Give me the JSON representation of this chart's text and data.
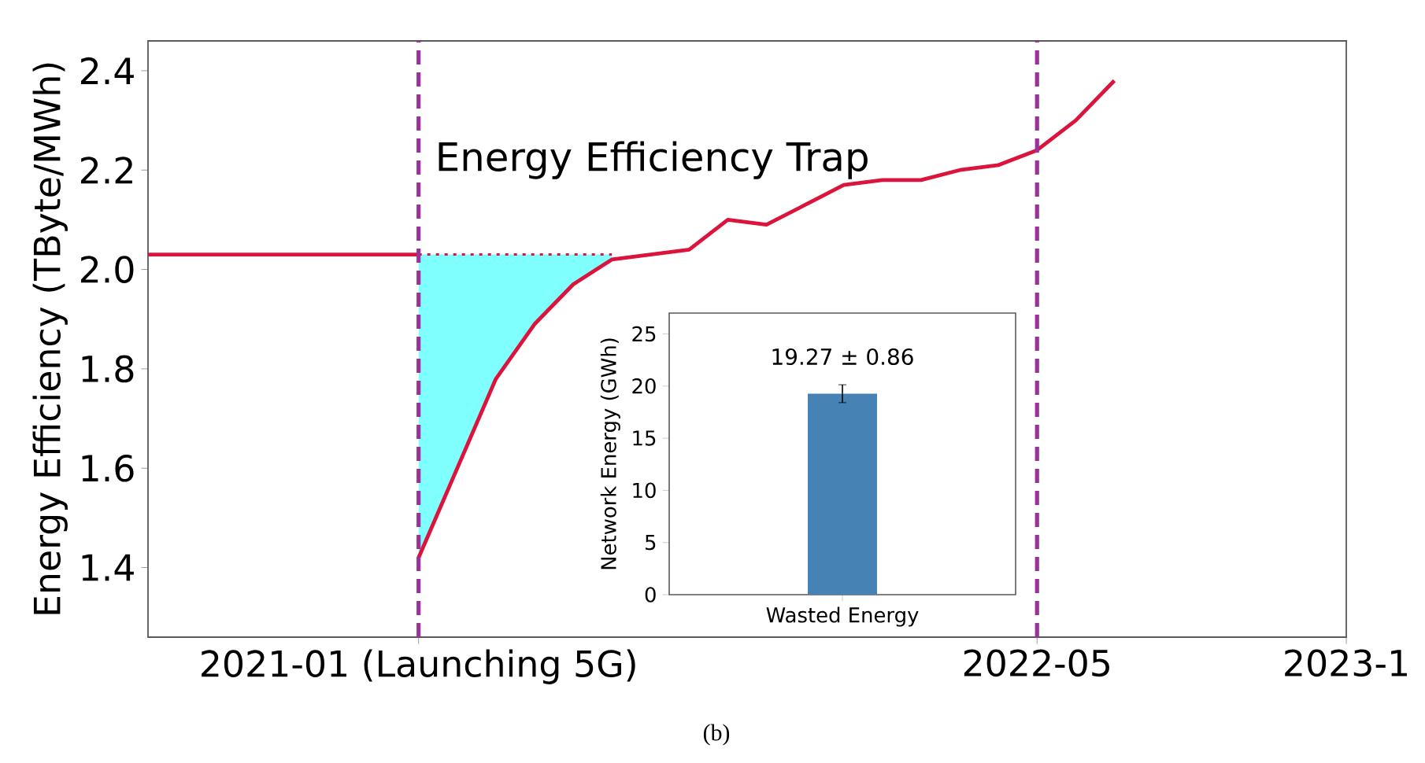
{
  "chart_data": [
    {
      "type": "line",
      "ylabel": "Energy Efficiency (TByte/MWh)",
      "xlim": [
        "2020-06",
        "2023-01"
      ],
      "ylim": [
        1.26,
        2.46
      ],
      "xticks": [
        {
          "value": "2021-01",
          "label": "2021-01 (Launching 5G)"
        },
        {
          "value": "2022-05",
          "label": "2022-05"
        },
        {
          "value": "2023-01",
          "label": "2023-1"
        }
      ],
      "yticks": [
        1.4,
        1.6,
        1.8,
        {
          "value": 2.0,
          "label": "2.0"
        },
        2.2,
        2.4
      ],
      "series": [
        {
          "type": "area",
          "color": "#80ffff",
          "x": [
            "2021-01",
            "2021-03",
            "2021-04",
            "2021-05",
            "2021-06"
          ],
          "values": [
            2.03,
            2.03,
            2.03,
            2.03,
            2.03
          ]
        },
        {
          "type": "line",
          "color": "#dc143c",
          "line_style": "dotted",
          "x": [
            "2021-01",
            "2021-06"
          ],
          "values": [
            2.03,
            2.03
          ]
        },
        {
          "type": "line",
          "color": "#dc143c",
          "x": [
            "2020-06",
            "2021-01"
          ],
          "values": [
            2.03,
            2.03
          ]
        },
        {
          "type": "line",
          "color": "#dc143c",
          "x": [
            "2021-01",
            "2021-03",
            "2021-04",
            "2021-05",
            "2021-06",
            "2021-07",
            "2021-08",
            "2021-09",
            "2021-10",
            "2021-11",
            "2021-12",
            "2022-01",
            "2022-02",
            "2022-03",
            "2022-04",
            "2022-05",
            "2022-06",
            "2022-07"
          ],
          "values": [
            1.42,
            1.78,
            1.89,
            1.97,
            2.02,
            2.03,
            2.04,
            2.1,
            2.09,
            2.13,
            2.17,
            2.18,
            2.18,
            2.2,
            2.21,
            2.24,
            2.3,
            2.38
          ]
        }
      ],
      "ref_lines": [
        {
          "axis": "x",
          "value": "2021-01",
          "color": "#993399",
          "line_style": "dashed"
        },
        {
          "axis": "x",
          "value": "2022-05",
          "color": "#993399",
          "line_style": "dashed"
        }
      ],
      "annotations": [
        "Energy Efficiency Trap",
        "(b)"
      ]
    },
    {
      "type": "bar",
      "ylabel": "Network Energy (GWh)",
      "categories": [
        "Wasted Energy"
      ],
      "values": [
        19.27
      ],
      "errors": [
        0.86
      ],
      "value_labels": [
        "19.27 ± 0.86"
      ],
      "color": "#4682b4",
      "ylim": [
        0,
        27
      ],
      "yticks": [
        0,
        5,
        10,
        15,
        20,
        25
      ]
    }
  ]
}
